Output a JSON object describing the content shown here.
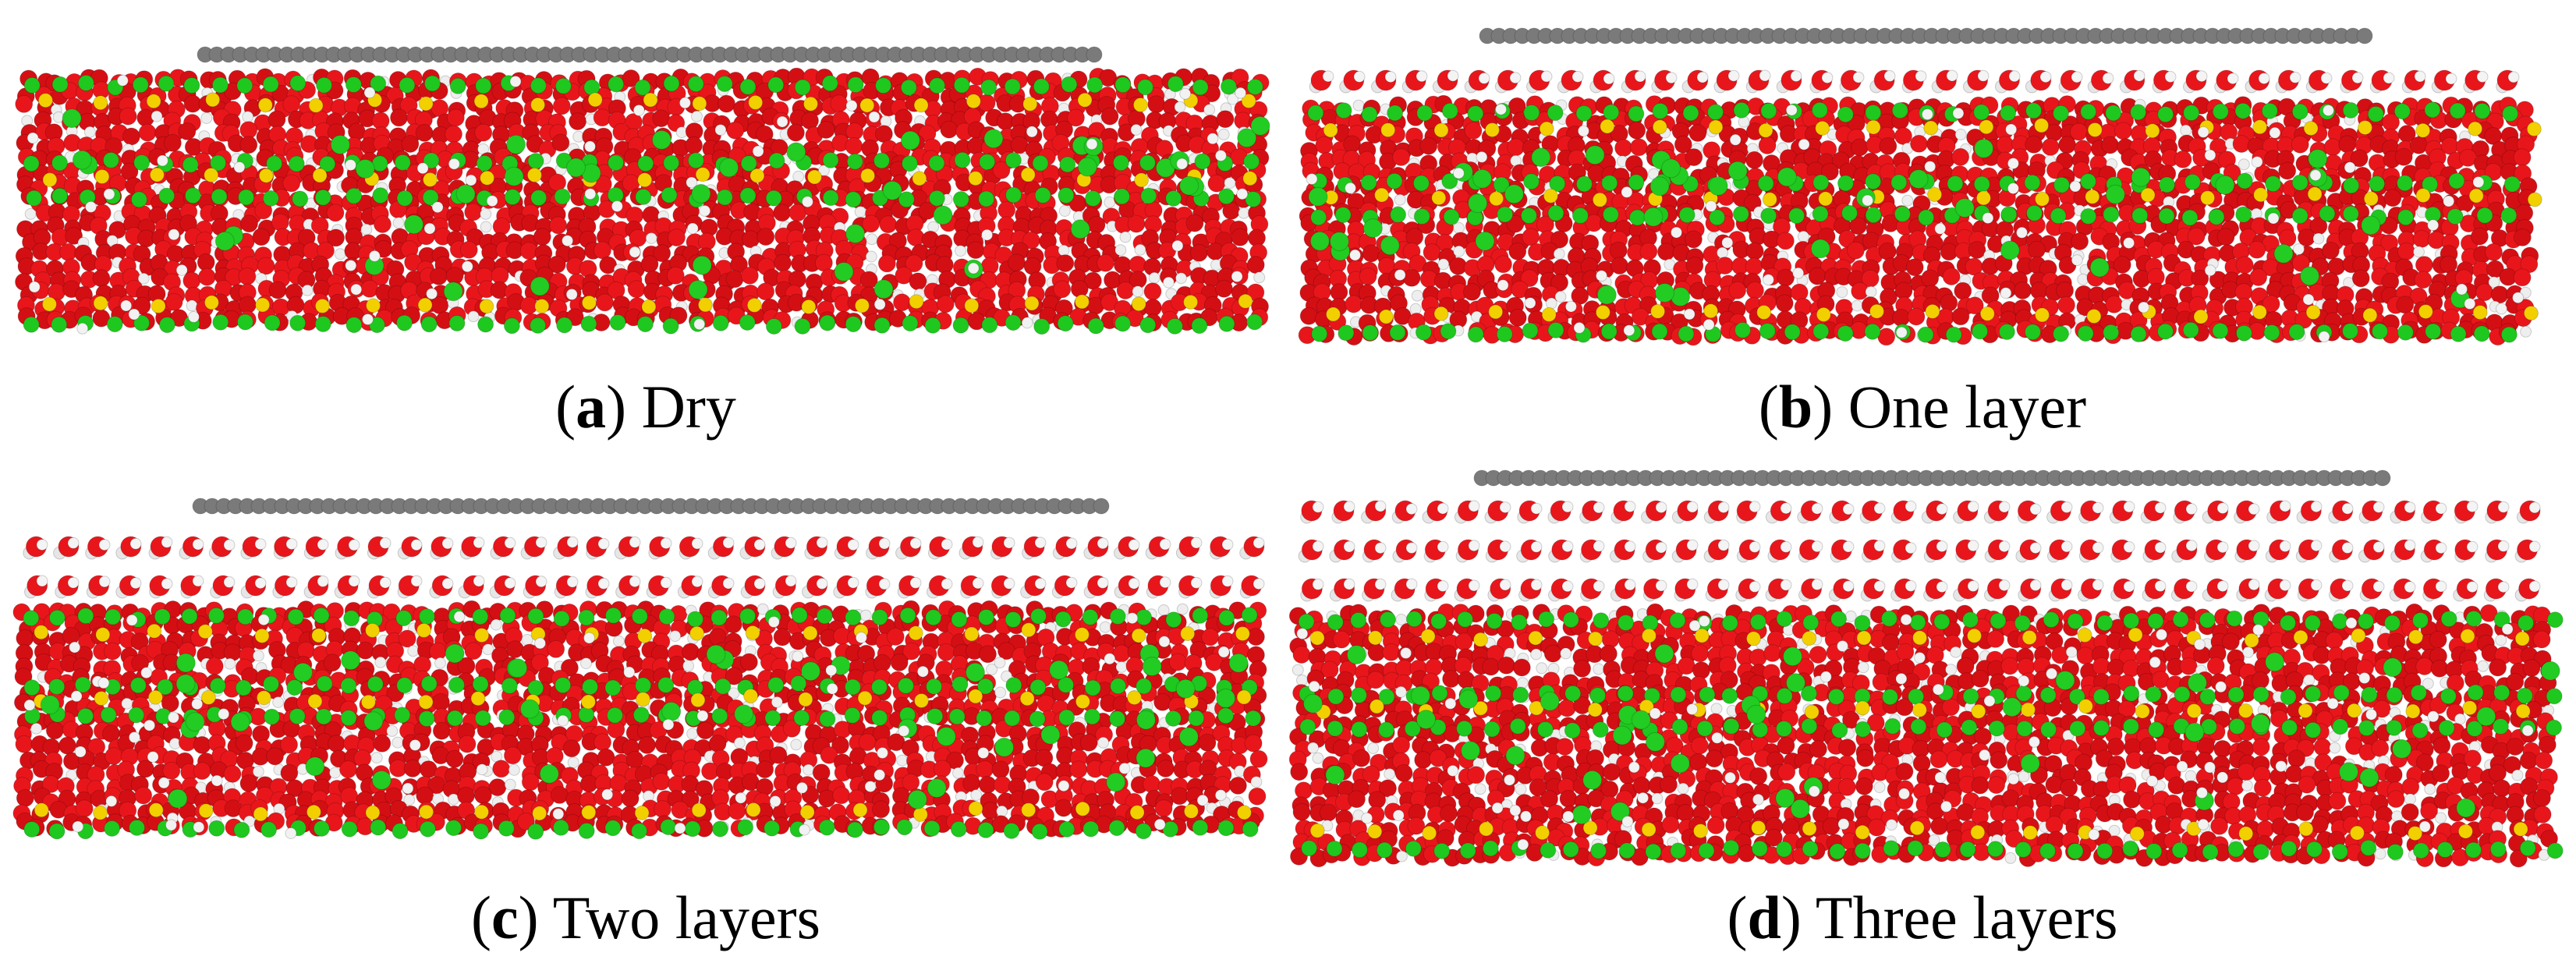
{
  "panels": [
    {
      "caption": [
        "(",
        "a",
        ")",
        "Dry"
      ]
    },
    {
      "caption": [
        "(",
        "b",
        ")",
        "One layer"
      ]
    },
    {
      "caption": [
        "(",
        "c",
        ")",
        "Two layers"
      ]
    },
    {
      "caption": [
        "(",
        "d",
        ")",
        "Three layers"
      ]
    }
  ]
}
